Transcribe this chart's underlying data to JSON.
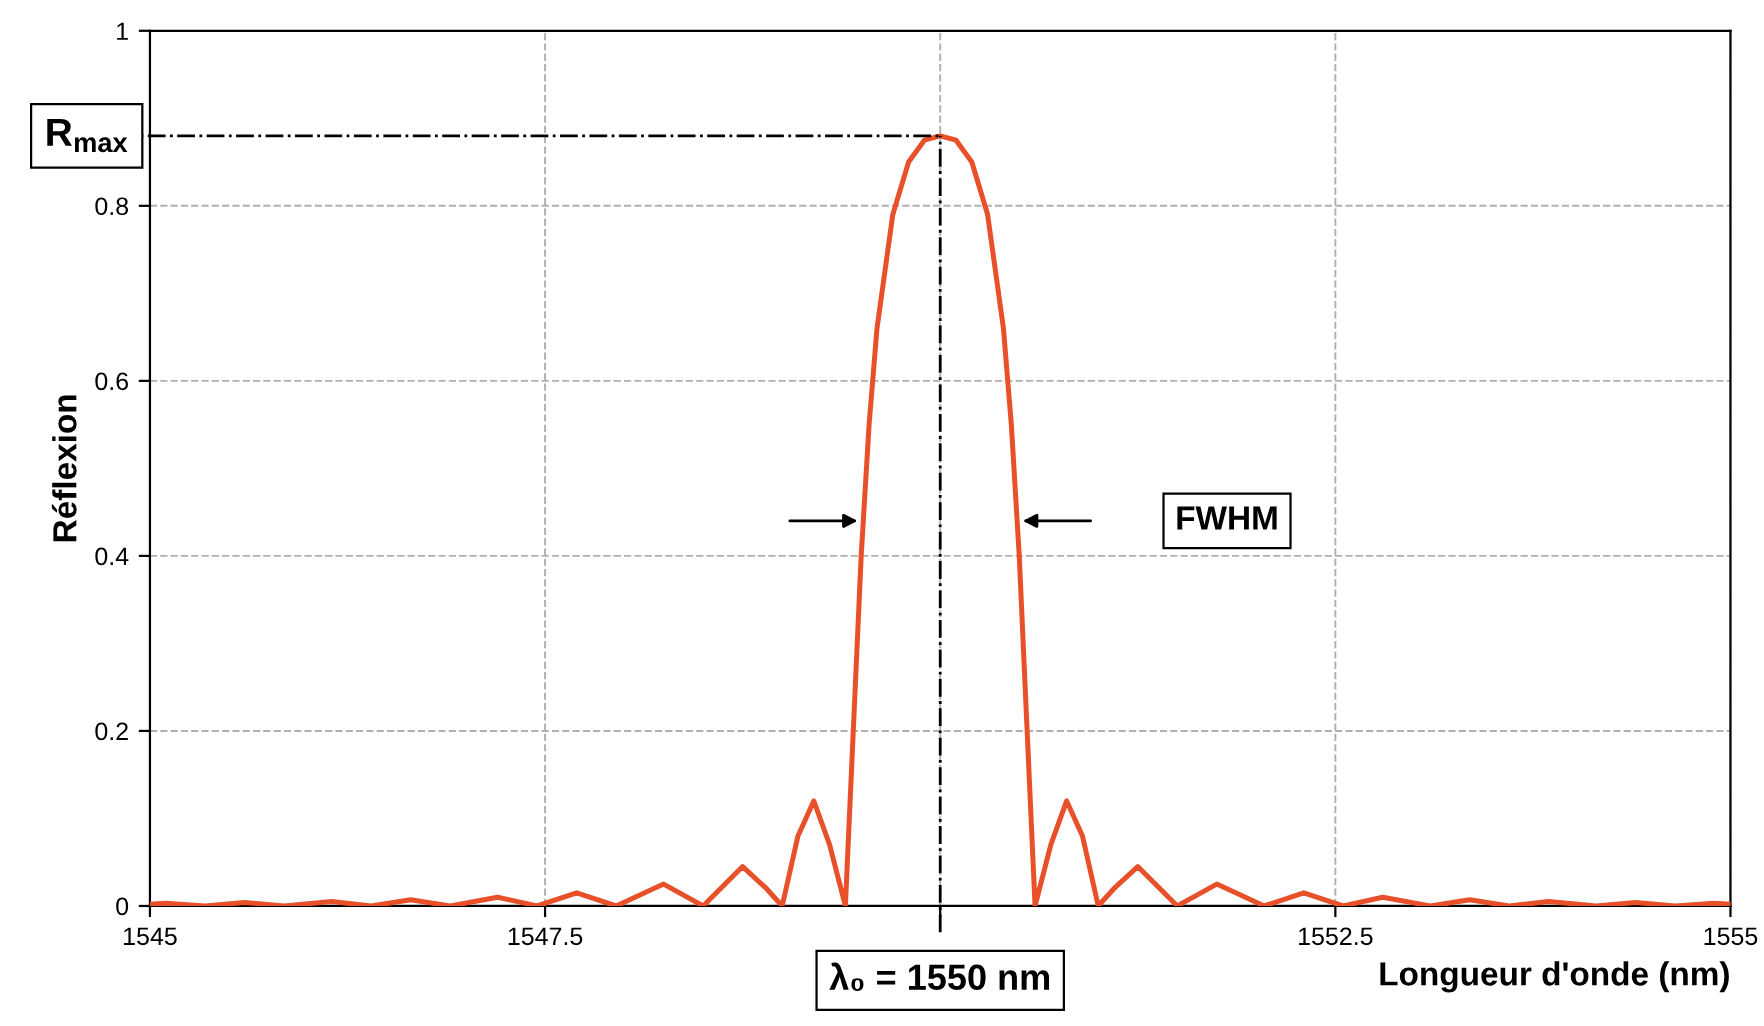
{
  "chart_data": {
    "type": "line",
    "xlabel": "Longueur d'onde (nm)",
    "ylabel": "Réflexion",
    "xlim": [
      1545,
      1555
    ],
    "ylim": [
      0,
      1
    ],
    "xticks": [
      1545,
      1547.5,
      {
        "value": 1550,
        "label": null
      },
      1552.5,
      1555
    ],
    "yticks": [
      0,
      0.2,
      0.4,
      0.6,
      0.8,
      1
    ],
    "grid": true,
    "marker": "none",
    "line_style": "solid",
    "series": [
      {
        "color": "#e8502a",
        "x": [
          1545,
          1545.1,
          1545.35,
          1545.6,
          1545.85,
          1546.15,
          1546.4,
          1546.65,
          1546.9,
          1547.2,
          1547.45,
          1547.7,
          1547.95,
          1548.25,
          1548.5,
          1548.75,
          1548.9,
          1549.0,
          1549.1,
          1549.2,
          1549.3,
          1549.4,
          1549.45,
          1549.5,
          1549.55,
          1549.6,
          1549.7,
          1549.8,
          1549.9,
          1550,
          1550.1,
          1550.2,
          1550.3,
          1550.4,
          1550.45,
          1550.5,
          1550.55,
          1550.6,
          1550.7,
          1550.8,
          1550.9,
          1551.0,
          1551.1,
          1551.25,
          1551.5,
          1551.75,
          1552.05,
          1552.3,
          1552.55,
          1552.8,
          1553.1,
          1553.35,
          1553.6,
          1553.85,
          1554.15,
          1554.4,
          1554.65,
          1554.9,
          1555
        ],
        "values": [
          0.002,
          0.003,
          0,
          0.004,
          0,
          0.005,
          0,
          0.007,
          0,
          0.01,
          0,
          0.015,
          0,
          0.025,
          0,
          0.045,
          0.02,
          0,
          0.08,
          0.12,
          0.07,
          0,
          0.2,
          0.4,
          0.55,
          0.66,
          0.79,
          0.85,
          0.875,
          0.88,
          0.875,
          0.85,
          0.79,
          0.66,
          0.55,
          0.4,
          0.2,
          0,
          0.07,
          0.12,
          0.08,
          0,
          0.02,
          0.045,
          0,
          0.025,
          0,
          0.015,
          0,
          0.01,
          0,
          0.007,
          0,
          0.005,
          0,
          0.004,
          0,
          0.003,
          0.002
        ]
      }
    ],
    "ref_lines": [
      {
        "axis": "x",
        "value": 1550,
        "label": "λ₀ = 1550 nm",
        "line_style": "dashdot"
      },
      {
        "axis": "y",
        "value": 0.88,
        "label": "R$_{max}$",
        "line_style": "dashdot"
      }
    ],
    "annotations": [
      "FWHM"
    ]
  }
}
